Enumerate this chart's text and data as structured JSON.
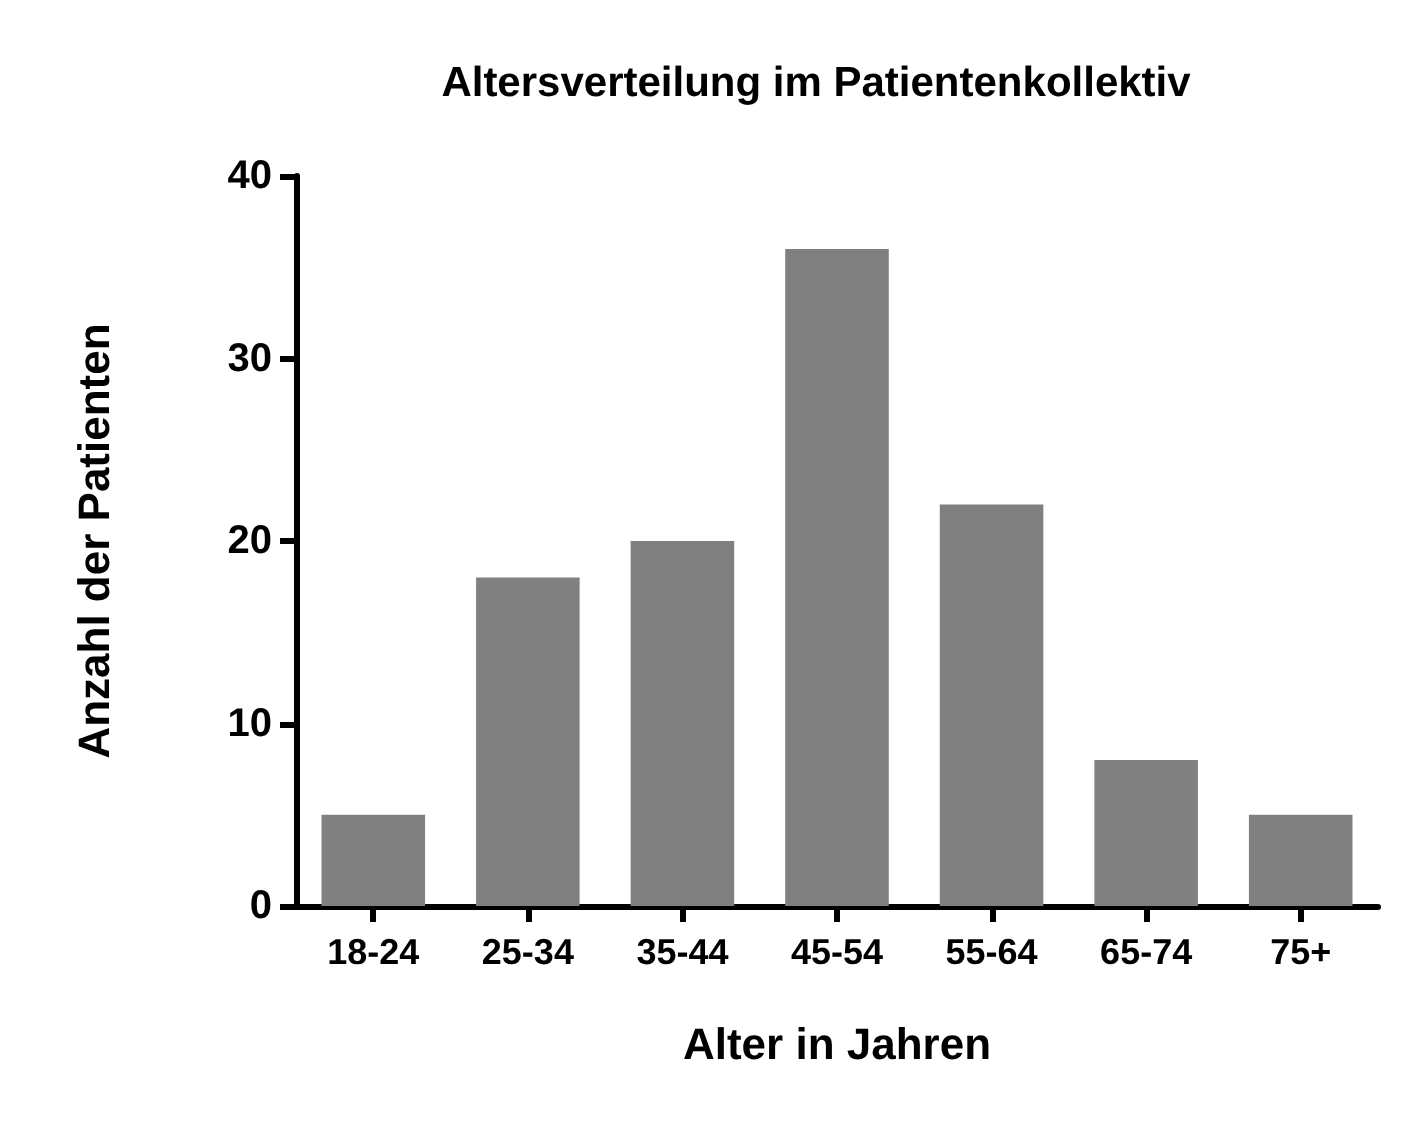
{
  "chart_data": {
    "type": "bar",
    "title": "Altersverteilung im Patientenkollektiv",
    "xlabel": "Alter in Jahren",
    "ylabel": "Anzahl der Patienten",
    "categories": [
      "18-24",
      "25-34",
      "35-44",
      "45-54",
      "55-64",
      "65-74",
      "75+"
    ],
    "values": [
      5,
      18,
      20,
      36,
      22,
      8,
      5
    ],
    "color": "#808080",
    "ylim": [
      0,
      40
    ],
    "yticks": [
      0,
      10,
      20,
      30,
      40
    ],
    "grid": false
  }
}
